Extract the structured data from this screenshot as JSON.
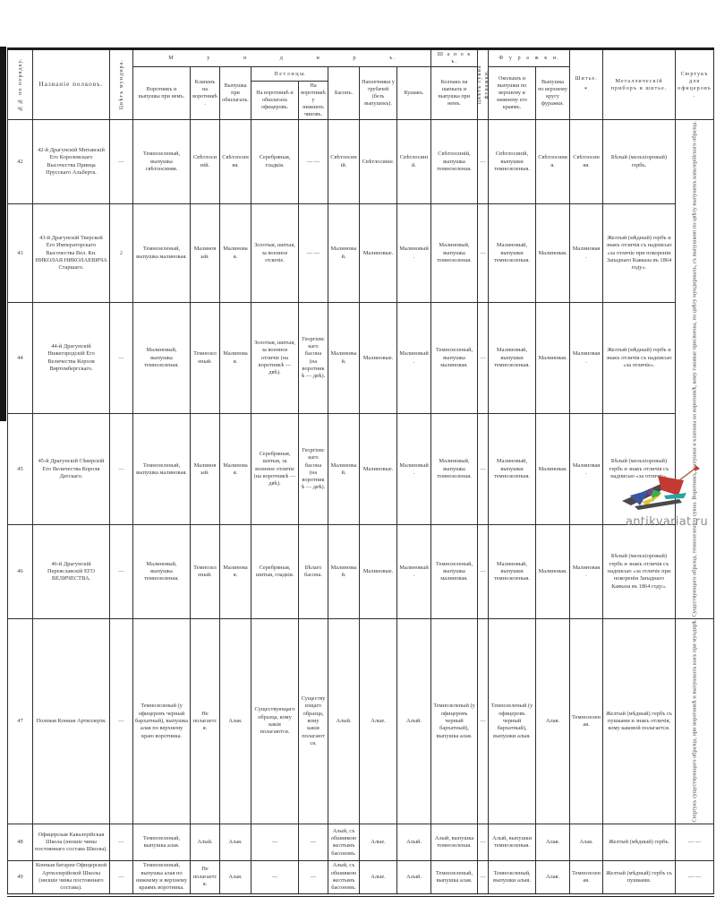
{
  "watermark": {
    "text": "antikvariat.ru",
    "text_color": "#8f8f8f",
    "logo_colors": {
      "dark": "#4a4a4a",
      "red": "#c23a31",
      "blue": "#3b55a5",
      "green": "#3fae4a",
      "yellow": "#e7c32b",
      "teal": "#2ba3a0",
      "purple": "#7b3fa0"
    }
  },
  "table": {
    "group_headers": {
      "mundir": "М у н д и р ъ.",
      "shapok": "Ш а п о к ъ.",
      "furazhki": "Ф у р а ж к и."
    },
    "headers": {
      "num": "№№ по порядку.",
      "name": "Названіе полковъ.",
      "cloth": "Цвѣтъ мундира.",
      "vorotnik": "Воротникъ и выпушка при немъ.",
      "klapan": "Клапанъ на воротникѣ.",
      "vypushka_obshlag": "Выпушка при обшлагахъ.",
      "petlicy": "П е т л и ц ы.",
      "petlicy_of": "На воротникѣ и обшлагахъ офицеровъ.",
      "petlicy_nizh": "На воротникѣ у нижнихъ чиновъ.",
      "bason": "Басонъ.",
      "naplechniki": "Наплечники у трубачей (безъ выпушекъ).",
      "kushak": "Кушакъ.",
      "kolpak": "Колпакъ на шапкахъ и выпушка при немъ.",
      "furazhka_cloth": "Цвѣтъ сукна фуражки.",
      "okolysh": "Околышъ и выпушки по верхнему и нижнему его краямъ.",
      "vypushka_krug": "Выпушка по верхнему кругу фуражки.",
      "shitye": "Шитье.",
      "shitye_footnote": "*",
      "metal": "Металлическій приборъ и шитье.",
      "surtuk": "Сюртукъ для офицеровъ."
    },
    "surtuk_note_main": "Существующаго образца, темнозеленаго сукна. Воротникъ, выпушки и клапаны на воротникѣ, кому таковые присвоены, по цвѣту мундирныхъ, съ выпушкою по цвѣту выпушекъ кавалерійскаго образца.",
    "rows": [
      {
        "num": "42",
        "name": "42-й Драгунскій Митавскій Его Королевскаго Высочества Принца Прусскаго Альберта.",
        "cells": [
          "—",
          "Темнозеленый, выпушка свѣтлосиняя.",
          "Свѣтлосиній.",
          "Свѣтлосиняя.",
          "Серебряныя, гладкія.",
          "— —",
          "Свѣтлосиній.",
          "Свѣтлосиніе.",
          "Свѣтлосиній.",
          "Свѣтлосиній, выпушка темнозеленая.",
          "—",
          "Свѣтлосиній, выпушки темнозеленыя.",
          "Свѣтлосиняя.",
          "Свѣтлосиняя.",
          "Бѣлый (мельхіоровый) гербъ."
        ],
        "surtuk": {
          "rowspan": 5,
          "vertical": true,
          "use_main_note": true
        }
      },
      {
        "num": "43",
        "name": "43-й Драгунскій Тверской Его Императорскаго Высочества Вел. Кн. НИКОЛАЯ НИКОЛАЕВИЧА Старшаго.",
        "cells": [
          "2",
          "Темнозеленый, выпушка малиновая.",
          "Малиновый.",
          "Малиновая.",
          "Золотыя, шитыя, за военное отличіе.",
          "— —",
          "Малиновый.",
          "Малиновые.",
          "Малиновый.",
          "Малиновый, выпушка темнозеленая.",
          "—",
          "Малиновый, выпушки темнозеленыя.",
          "Малиновая.",
          "Малиновая.",
          "Желтый (мѣдный) гербъ и знакъ отличія съ надписью «за отличіе при покореніи Западнаго Кавказа въ 1864 году»."
        ]
      },
      {
        "num": "44",
        "name": "44-й Драгунскій Нижегородскій Его Величества Короля Виртембергскаго.",
        "cells": [
          "—",
          "Малиновый, выпушка темнозеленая.",
          "Темнозеленый.",
          "Малиновая.",
          "Золотыя, шитыя, за военное отличіе (на воротникѣ — двѣ).",
          "Георгіевскаго басона (на воротникѣ — двѣ).",
          "Малиновый.",
          "Малиновые.",
          "Малиновый.",
          "Темнозеленый, выпушка малиновая.",
          "—",
          "Малиновый, выпушки темнозеленыя.",
          "Малиновая.",
          "Малиновая.",
          "Желтый (мѣдный) гербъ и знакъ отличія съ надписью «за отличіе»."
        ]
      },
      {
        "num": "45",
        "name": "45-й Драгунскій Сѣверскій Его Величества Короля Датскаго.",
        "cells": [
          "—",
          "Темнозеленый, выпушка малиновая.",
          "Малиновый.",
          "Малиновая.",
          "Серебряныя, шитыя, за военное отличіе (на воротникѣ — двѣ).",
          "Георгіевскаго басона (на воротникѣ — двѣ).",
          "Малиновый.",
          "Малиновые.",
          "Малиновый.",
          "Малиновый, выпушка темнозеленая.",
          "—",
          "Малиновый, выпушки темнозеленыя.",
          "Малиновая.",
          "Малиновая.",
          "Бѣлый (мельхіоровый) гербъ и знакъ отличія съ надписью «за отличіе»."
        ]
      },
      {
        "num": "46",
        "name": "46-й Драгунскій Переяславскій ЕГО ВЕЛИЧЕСТВА.",
        "cells": [
          "—",
          "Малиновый, выпушка темнозеленая.",
          "Темнозеленый.",
          "Малиновая.",
          "Серебряныя, шитыя, гладкія.",
          "Бѣлаго басона.",
          "Малиновый.",
          "Малиновые.",
          "Малиновый.",
          "Темнозеленый, выпушка малиновая.",
          "—",
          "Малиновый, выпушки темнозеленыя.",
          "Малиновая.",
          "Малиновая.",
          "Бѣлый (мельхіоровый) гербъ и знакъ отличія съ надписью «за отличіе при покореніи Западнаго Кавказа въ 1864 году»."
        ]
      },
      {
        "num": "47",
        "name": "Полевая Конная Артиллерія.",
        "cells": [
          "—",
          "Темнозеленый (у офицеровъ черный бархатный), выпушка алая по верхнему краю воротника.",
          "Не полагается.",
          "Алая.",
          "Существующаго образца, кому какія полагаются.",
          "Существующаго образца, кому какія полагаются.",
          "Алый.",
          "Алые.",
          "Алый.",
          "Темнозеленый (у офицеровъ черный бархатный), выпушка алая.",
          "—",
          "Темнозеленый (у офицеровъ черный бархатный), выпушки алыя.",
          "Алая.",
          "Темнозеленая.",
          "Желтый (мѣдный) гербъ съ пушками и знакъ отличія, кому каковой полагается."
        ],
        "surtuk": {
          "vertical": true,
          "text": "Сюртукъ существующаго образца, при воротникѣ и выпушкахъ какъ при мундирѣ."
        }
      },
      {
        "num": "48",
        "name": "Офицерская Кавалерійская Школа (низшіе чины постояннаго состава Школы).",
        "cells": [
          "—",
          "Темнозеленый, выпушка алая.",
          "Алый.",
          "Алая.",
          "—",
          "—",
          "Алый, съ обшивкою желтымъ басономъ.",
          "Алые.",
          "Алый.",
          "Алый, выпушка темнозеленая.",
          "—",
          "Алый, выпушки темнозеленыя.",
          "Алая.",
          "Алая.",
          "Желтый (мѣдный) гербъ."
        ],
        "surtuk": {
          "text": "— —"
        }
      },
      {
        "num": "49",
        "name": "Конныя батареи Офицерской Артиллерійской Школы (низшіе чины постояннаго состава).",
        "cells": [
          "—",
          "Темнозеленый, выпушка алая по нижнему и верхнему краямъ воротника.",
          "Не полагается.",
          "Алая.",
          "—",
          "—",
          "Алый, съ обшивкою желтымъ басономъ.",
          "Алые.",
          "Алый.",
          "Темнозеленый, выпушка алая.",
          "—",
          "Темнозеленый, выпушки алыя.",
          "Алая.",
          "Темнозеленая.",
          "Желтый (мѣдный) гербъ съ пушками."
        ],
        "surtuk": {
          "text": "— —"
        }
      }
    ]
  }
}
